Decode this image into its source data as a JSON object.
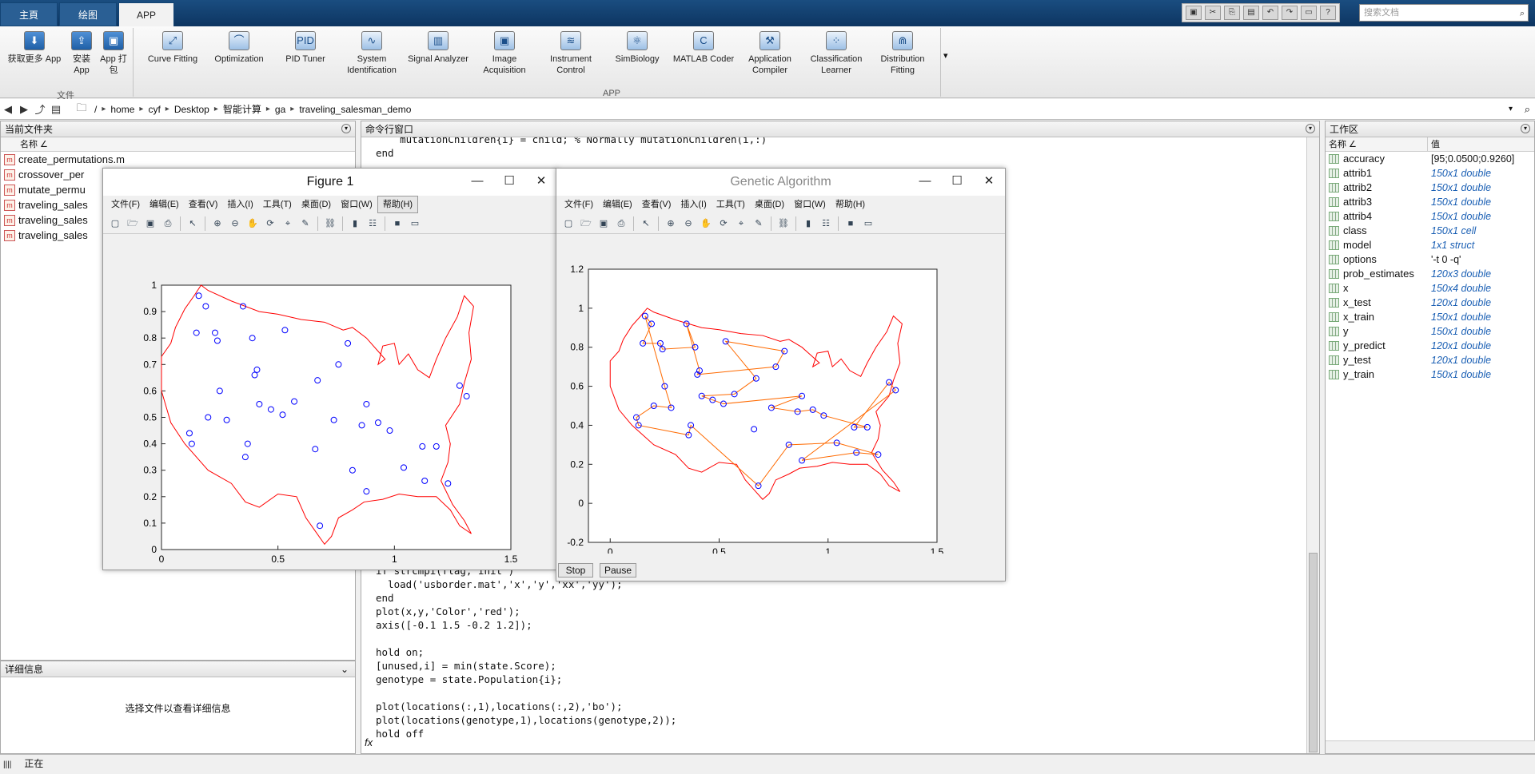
{
  "tabs": [
    {
      "label": "主頁"
    },
    {
      "label": "绘图"
    },
    {
      "label": "APP"
    }
  ],
  "search": {
    "placeholder": "搜索文档"
  },
  "ribbon": {
    "file_group": {
      "label": "文件",
      "buttons": [
        {
          "label": "获取更多 App",
          "icon": "download-icon"
        },
        {
          "label": "安装 App",
          "icon": "install-icon"
        },
        {
          "label": "App 打包",
          "icon": "package-icon"
        }
      ]
    },
    "app_group": {
      "label": "APP",
      "apps": [
        {
          "label": "Curve Fitting",
          "icon": "curve-fitting-icon"
        },
        {
          "label": "Optimization",
          "icon": "optimization-icon"
        },
        {
          "label": "PID Tuner",
          "icon": "pid-tuner-icon"
        },
        {
          "label": "System Identification",
          "icon": "system-identification-icon"
        },
        {
          "label": "Signal Analyzer",
          "icon": "signal-analyzer-icon"
        },
        {
          "label": "Image Acquisition",
          "icon": "image-acquisition-icon"
        },
        {
          "label": "Instrument Control",
          "icon": "instrument-control-icon"
        },
        {
          "label": "SimBiology",
          "icon": "simbiology-icon"
        },
        {
          "label": "MATLAB Coder",
          "icon": "matlab-coder-icon"
        },
        {
          "label": "Application Compiler",
          "icon": "application-compiler-icon"
        },
        {
          "label": "Classification Learner",
          "icon": "classification-learner-icon"
        },
        {
          "label": "Distribution Fitting",
          "icon": "distribution-fitting-icon"
        }
      ]
    }
  },
  "breadcrumb": [
    "/",
    "home",
    "cyf",
    "Desktop",
    "智能计算",
    "ga",
    "traveling_salesman_demo"
  ],
  "current_folder": {
    "title": "当前文件夹",
    "column": "名称 ∠",
    "files": [
      "create_permutations.m",
      "crossover_per",
      "mutate_permu",
      "traveling_sales",
      "traveling_sales",
      "traveling_sales"
    ]
  },
  "details": {
    "title": "详细信息",
    "message": "选择文件以查看详细信息"
  },
  "command_window": {
    "title": "命令行窗口",
    "top_lines": "    mutationChildren{i} = child; % Normally mutationChildren(i,:)\nend",
    "bottom_lines": "if strcmpi(flag,'init')\n  load('usborder.mat','x','y','xx','yy');\nend\nplot(x,y,'Color','red');\naxis([-0.1 1.5 -0.2 1.2]);\n\nhold on;\n[unused,i] = min(state.Score);\ngenotype = state.Population{i};\n\nplot(locations(:,1),locations(:,2),'bo');\nplot(locations(genotype,1),locations(genotype,2));\nhold off",
    "fx": "fx"
  },
  "workspace": {
    "title": "工作区",
    "col_name": "名称 ∠",
    "col_value": "值",
    "variables": [
      {
        "name": "accuracy",
        "value": "[95;0.0500;0.9260]",
        "plain": true
      },
      {
        "name": "attrib1",
        "value": "150x1 double"
      },
      {
        "name": "attrib2",
        "value": "150x1 double"
      },
      {
        "name": "attrib3",
        "value": "150x1 double"
      },
      {
        "name": "attrib4",
        "value": "150x1 double"
      },
      {
        "name": "class",
        "value": "150x1 cell"
      },
      {
        "name": "model",
        "value": "1x1 struct"
      },
      {
        "name": "options",
        "value": "'-t 0 -q'",
        "plain": true
      },
      {
        "name": "prob_estimates",
        "value": "120x3 double"
      },
      {
        "name": "x",
        "value": "150x4 double"
      },
      {
        "name": "x_test",
        "value": "120x1 double"
      },
      {
        "name": "x_train",
        "value": "150x1 double"
      },
      {
        "name": "y",
        "value": "150x1 double"
      },
      {
        "name": "y_predict",
        "value": "120x1 double"
      },
      {
        "name": "y_test",
        "value": "120x1 double"
      },
      {
        "name": "y_train",
        "value": "150x1 double"
      }
    ]
  },
  "figure1": {
    "title": "Figure 1",
    "menus": [
      "文件(F)",
      "编辑(E)",
      "查看(V)",
      "插入(I)",
      "工具(T)",
      "桌面(D)",
      "窗口(W)",
      "帮助(H)"
    ]
  },
  "figure2": {
    "title": "Genetic Algorithm",
    "menus": [
      "文件(F)",
      "编辑(E)",
      "查看(V)",
      "插入(I)",
      "工具(T)",
      "桌面(D)",
      "窗口(W)",
      "帮助(H)"
    ],
    "stop_label": "Stop",
    "pause_label": "Pause"
  },
  "status": {
    "text": "正在"
  },
  "colors": {
    "border": "#ff0000",
    "points": "#0000ff",
    "route": "#ff6a00"
  },
  "chart_data": [
    {
      "type": "scatter",
      "xlim": [
        0,
        1.5
      ],
      "ylim": [
        0,
        1
      ],
      "xticks": [
        0,
        0.5,
        1,
        1.5
      ],
      "yticks": [
        0,
        0.1,
        0.2,
        0.3,
        0.4,
        0.5,
        0.6,
        0.7,
        0.8,
        0.9,
        1
      ],
      "border": [
        [
          0.0,
          0.73
        ],
        [
          0.04,
          0.78
        ],
        [
          0.06,
          0.84
        ],
        [
          0.1,
          0.91
        ],
        [
          0.14,
          0.96
        ],
        [
          0.17,
          1.0
        ],
        [
          0.2,
          0.98
        ],
        [
          0.3,
          0.94
        ],
        [
          0.42,
          0.9
        ],
        [
          0.5,
          0.89
        ],
        [
          0.6,
          0.87
        ],
        [
          0.7,
          0.86
        ],
        [
          0.78,
          0.83
        ],
        [
          0.82,
          0.84
        ],
        [
          0.88,
          0.8
        ],
        [
          0.93,
          0.75
        ],
        [
          0.96,
          0.72
        ],
        [
          0.93,
          0.7
        ],
        [
          0.95,
          0.77
        ],
        [
          1.0,
          0.78
        ],
        [
          1.02,
          0.7
        ],
        [
          1.06,
          0.74
        ],
        [
          1.1,
          0.68
        ],
        [
          1.15,
          0.65
        ],
        [
          1.18,
          0.72
        ],
        [
          1.22,
          0.8
        ],
        [
          1.27,
          0.88
        ],
        [
          1.3,
          0.96
        ],
        [
          1.34,
          0.92
        ],
        [
          1.32,
          0.82
        ],
        [
          1.33,
          0.72
        ],
        [
          1.3,
          0.63
        ],
        [
          1.28,
          0.55
        ],
        [
          1.22,
          0.47
        ],
        [
          1.24,
          0.4
        ],
        [
          1.23,
          0.33
        ],
        [
          1.2,
          0.26
        ],
        [
          1.25,
          0.17
        ],
        [
          1.3,
          0.11
        ],
        [
          1.33,
          0.06
        ],
        [
          1.28,
          0.09
        ],
        [
          1.24,
          0.15
        ],
        [
          1.18,
          0.2
        ],
        [
          1.1,
          0.2
        ],
        [
          1.02,
          0.21
        ],
        [
          0.95,
          0.19
        ],
        [
          0.87,
          0.18
        ],
        [
          0.82,
          0.15
        ],
        [
          0.76,
          0.12
        ],
        [
          0.73,
          0.05
        ],
        [
          0.7,
          0.02
        ],
        [
          0.66,
          0.07
        ],
        [
          0.62,
          0.12
        ],
        [
          0.58,
          0.2
        ],
        [
          0.5,
          0.21
        ],
        [
          0.42,
          0.16
        ],
        [
          0.36,
          0.18
        ],
        [
          0.3,
          0.25
        ],
        [
          0.2,
          0.3
        ],
        [
          0.1,
          0.4
        ],
        [
          0.04,
          0.48
        ],
        [
          0.0,
          0.6
        ]
      ],
      "points": [
        [
          0.16,
          0.96
        ],
        [
          0.19,
          0.92
        ],
        [
          0.35,
          0.92
        ],
        [
          0.15,
          0.82
        ],
        [
          0.23,
          0.82
        ],
        [
          0.24,
          0.79
        ],
        [
          0.39,
          0.8
        ],
        [
          0.53,
          0.83
        ],
        [
          0.8,
          0.78
        ],
        [
          0.41,
          0.68
        ],
        [
          0.4,
          0.66
        ],
        [
          0.76,
          0.7
        ],
        [
          0.67,
          0.64
        ],
        [
          0.25,
          0.6
        ],
        [
          0.57,
          0.56
        ],
        [
          0.42,
          0.55
        ],
        [
          0.47,
          0.53
        ],
        [
          0.52,
          0.51
        ],
        [
          0.88,
          0.55
        ],
        [
          0.2,
          0.5
        ],
        [
          0.28,
          0.49
        ],
        [
          0.74,
          0.49
        ],
        [
          0.86,
          0.47
        ],
        [
          0.93,
          0.48
        ],
        [
          0.98,
          0.45
        ],
        [
          0.12,
          0.44
        ],
        [
          0.13,
          0.4
        ],
        [
          0.37,
          0.4
        ],
        [
          0.36,
          0.35
        ],
        [
          0.66,
          0.38
        ],
        [
          1.12,
          0.39
        ],
        [
          1.18,
          0.39
        ],
        [
          1.28,
          0.62
        ],
        [
          1.31,
          0.58
        ],
        [
          1.04,
          0.31
        ],
        [
          0.82,
          0.3
        ],
        [
          1.13,
          0.26
        ],
        [
          1.23,
          0.25
        ],
        [
          0.88,
          0.22
        ],
        [
          0.68,
          0.09
        ]
      ]
    },
    {
      "type": "line",
      "xlim": [
        -0.1,
        1.5
      ],
      "ylim": [
        -0.2,
        1.2
      ],
      "xticks": [
        0,
        0.5,
        1,
        1.5
      ],
      "yticks": [
        -0.2,
        0,
        0.2,
        0.4,
        0.6,
        0.8,
        1,
        1.2
      ],
      "route_order": [
        0,
        1,
        3,
        4,
        5,
        6,
        2,
        9,
        10,
        11,
        8,
        7,
        12,
        14,
        15,
        16,
        17,
        18,
        21,
        22,
        23,
        24,
        31,
        30,
        32,
        33,
        38,
        36,
        37,
        34,
        35,
        39,
        27,
        28,
        26,
        25,
        19,
        20,
        13,
        0
      ]
    }
  ]
}
